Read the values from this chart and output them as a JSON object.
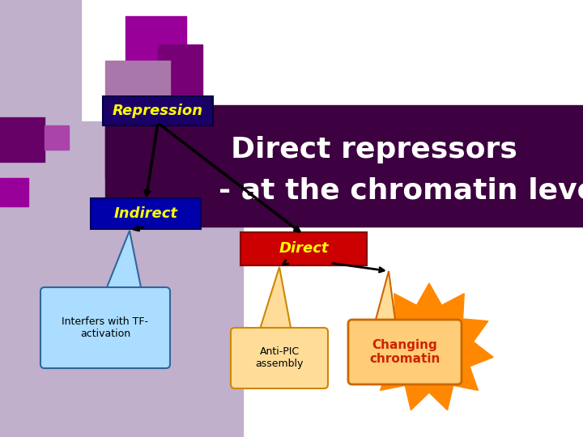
{
  "title_line1": "Direct repressors",
  "title_line2": "- at the chromatin level",
  "title_color": "#ffffff",
  "title_fontsize": 26,
  "bg_lavender": "#c0b0cc",
  "bg_white": "#ffffff",
  "banner_color": "#3d0040",
  "repression_label": "Repression",
  "repression_box_color": "#1a0066",
  "repression_text_color": "#ffff00",
  "indirect_label": "Indirect",
  "indirect_box_color": "#0000aa",
  "indirect_text_color": "#ffff00",
  "direct_label": "Direct",
  "direct_box_color": "#cc0000",
  "direct_text_color": "#ffff00",
  "interfers_label": "Interfers with TF-\nactivation",
  "interfers_box_color": "#aaddff",
  "interfers_border_color": "#336699",
  "interfers_text_color": "#000000",
  "antipic_label": "Anti-PIC\nassembly",
  "antipic_box_color": "#ffdd99",
  "antipic_border_color": "#cc8800",
  "antipic_text_color": "#000000",
  "changing_label": "Changing\nchromatin",
  "changing_box_color": "#ffcc77",
  "changing_border_color": "#cc6600",
  "changing_text_color": "#cc2200",
  "starburst_color": "#ff8800",
  "sq1_color": "#660066",
  "sq2_color": "#990099",
  "sq3_color": "#aa44aa",
  "sq4_color": "#bb77bb"
}
